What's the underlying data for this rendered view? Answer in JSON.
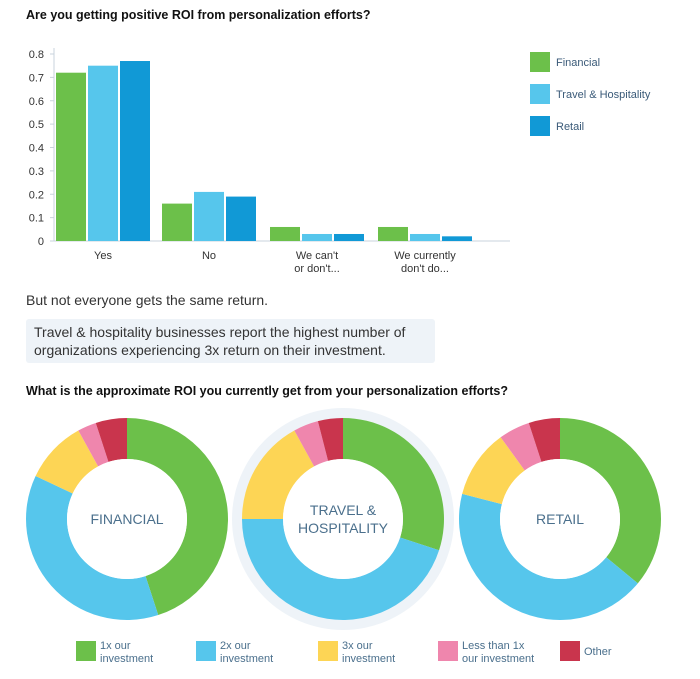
{
  "chart_data": [
    {
      "type": "bar",
      "title": "Are you getting positive ROI from personalization efforts?",
      "categories": [
        [
          "Yes"
        ],
        [
          "No"
        ],
        [
          "We can't",
          "or don't..."
        ],
        [
          "We currently",
          "don't do..."
        ]
      ],
      "series": [
        {
          "name": "Financial",
          "color": "#6cc04a",
          "values": [
            0.72,
            0.16,
            0.06,
            0.06
          ]
        },
        {
          "name": "Travel & Hospitality",
          "color": "#56c6ec",
          "values": [
            0.75,
            0.21,
            0.03,
            0.03
          ]
        },
        {
          "name": "Retail",
          "color": "#1199d6",
          "values": [
            0.77,
            0.19,
            0.03,
            0.02
          ]
        }
      ],
      "ylim": [
        0,
        0.8
      ],
      "yticks": [
        "0",
        "0.1",
        "0.2",
        "0.3",
        "0.4",
        "0.5",
        "0.6",
        "0.7",
        "0.8"
      ],
      "legend": "right"
    },
    {
      "type": "pie",
      "title": "What is the approximate ROI you currently get from your personalization efforts?",
      "categories": [
        [
          "1x our",
          "investment"
        ],
        [
          "2x our",
          "investment"
        ],
        [
          "3x our",
          "investment"
        ],
        [
          "Less than 1x",
          "our investment"
        ],
        [
          "Other"
        ]
      ],
      "colors": [
        "#6cc04a",
        "#56c6ec",
        "#fdd555",
        "#ef86ad",
        "#c9354d"
      ],
      "legend": "bottom",
      "donuts": [
        {
          "label": [
            "FINANCIAL"
          ],
          "values": [
            0.45,
            0.37,
            0.1,
            0.03,
            0.05
          ],
          "highlight": false
        },
        {
          "label": [
            "TRAVEL &",
            "HOSPITALITY"
          ],
          "values": [
            0.3,
            0.45,
            0.17,
            0.04,
            0.04
          ],
          "highlight": true
        },
        {
          "label": [
            "RETAIL"
          ],
          "values": [
            0.36,
            0.43,
            0.11,
            0.05,
            0.05
          ],
          "highlight": false
        }
      ]
    }
  ],
  "texts": {
    "subtitle": "But not everyone gets the same return.",
    "callout": "Travel & hospitality businesses report the highest number of organizations experiencing 3x return on their investment."
  }
}
